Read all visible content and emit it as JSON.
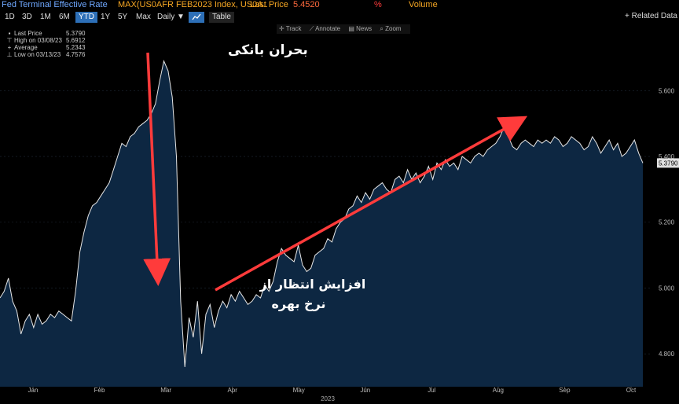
{
  "header": {
    "title": "Fed Terminal Effective Rate",
    "security": "MAX(US0AFR FEB2023 Index, US0A..",
    "last_price_label": "Last Price",
    "last_price_value": "5.4520",
    "pct_label": "%",
    "volume_label": "Volume"
  },
  "toolbar": {
    "ranges": [
      "1D",
      "3D",
      "1M",
      "6M",
      "YTD",
      "1Y",
      "5Y",
      "Max"
    ],
    "selected": "YTD",
    "frequency": "Daily ▼",
    "chart_icon": "line-chart-icon",
    "table_label": "Table",
    "related_label": "+ Related Data"
  },
  "chart_tools": [
    "✛ Track",
    "⟋ Annotate",
    "▤ News",
    "⌕ Zoom"
  ],
  "legend": {
    "items": [
      {
        "label": "Last Price",
        "value": "5.3790"
      },
      {
        "label": "High on 03/08/23",
        "value": "5.6912"
      },
      {
        "label": "Average",
        "value": "5.2343"
      },
      {
        "label": "Low on 03/13/23",
        "value": "4.7576"
      }
    ]
  },
  "annotations": {
    "bank_crisis": "بحران بانکی",
    "rate_expect_line1": "افزایش انتظار از",
    "rate_expect_line2": "نرخ بهره"
  },
  "colors": {
    "line": "#e6e6e6",
    "fill": "#0d2742",
    "arrow": "#ff3b3b",
    "last_price_tag": "#e0e0e0"
  },
  "chart_data": {
    "type": "area",
    "title": "Fed Terminal Effective Rate",
    "xlabel": "2023",
    "ylabel": "",
    "x_ticks": [
      "Jan",
      "Feb",
      "Mar",
      "Apr",
      "May",
      "Jun",
      "Jul",
      "Aug",
      "Sep",
      "Oct"
    ],
    "y_ticks": [
      "4.800",
      "5.000",
      "5.200",
      "5.400",
      "5.600"
    ],
    "ylim": [
      4.7,
      5.78
    ],
    "last_value_label": "5.3790",
    "series": [
      {
        "name": "Last Price",
        "values": [
          4.97,
          4.99,
          5.03,
          4.96,
          4.93,
          4.86,
          4.9,
          4.92,
          4.88,
          4.92,
          4.89,
          4.9,
          4.92,
          4.91,
          4.93,
          4.92,
          4.91,
          4.9,
          4.99,
          5.11,
          5.17,
          5.22,
          5.25,
          5.26,
          5.28,
          5.3,
          5.32,
          5.36,
          5.4,
          5.44,
          5.43,
          5.46,
          5.47,
          5.49,
          5.5,
          5.51,
          5.53,
          5.56,
          5.63,
          5.69,
          5.66,
          5.58,
          5.4,
          4.96,
          4.76,
          4.91,
          4.85,
          4.96,
          4.8,
          4.92,
          4.95,
          4.88,
          4.93,
          4.96,
          4.94,
          4.98,
          4.96,
          4.99,
          4.97,
          4.95,
          4.96,
          4.98,
          4.97,
          5.01,
          4.99,
          5.02,
          5.08,
          5.12,
          5.1,
          5.09,
          5.08,
          5.13,
          5.07,
          5.05,
          5.06,
          5.1,
          5.11,
          5.12,
          5.15,
          5.14,
          5.18,
          5.2,
          5.21,
          5.24,
          5.25,
          5.28,
          5.26,
          5.29,
          5.27,
          5.3,
          5.31,
          5.32,
          5.3,
          5.29,
          5.33,
          5.34,
          5.32,
          5.36,
          5.33,
          5.35,
          5.32,
          5.34,
          5.37,
          5.33,
          5.38,
          5.36,
          5.39,
          5.37,
          5.38,
          5.36,
          5.4,
          5.39,
          5.38,
          5.4,
          5.41,
          5.4,
          5.42,
          5.43,
          5.44,
          5.46,
          5.49,
          5.46,
          5.43,
          5.42,
          5.44,
          5.45,
          5.44,
          5.43,
          5.45,
          5.44,
          5.45,
          5.44,
          5.46,
          5.45,
          5.43,
          5.44,
          5.46,
          5.45,
          5.44,
          5.42,
          5.43,
          5.46,
          5.44,
          5.41,
          5.43,
          5.45,
          5.42,
          5.44,
          5.4,
          5.41,
          5.43,
          5.45,
          5.41,
          5.38
        ]
      }
    ]
  }
}
